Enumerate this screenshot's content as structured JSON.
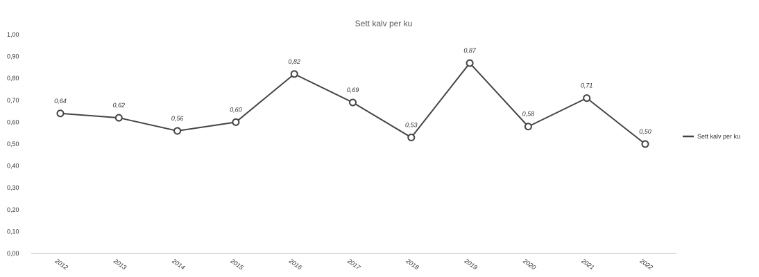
{
  "chart_data": {
    "type": "line",
    "title": "Sett kalv per ku",
    "xlabel": "",
    "ylabel": "",
    "categories": [
      "2012",
      "2013",
      "2014",
      "2015",
      "2016",
      "2017",
      "2018",
      "2019",
      "2020",
      "2021",
      "2022"
    ],
    "series": [
      {
        "name": "Sett kalv per ku",
        "values": [
          0.64,
          0.62,
          0.56,
          0.6,
          0.82,
          0.69,
          0.53,
          0.87,
          0.58,
          0.71,
          0.5
        ],
        "data_labels": [
          "0,64",
          "0,62",
          "0,56",
          "0,60",
          "0,82",
          "0,69",
          "0,53",
          "0,87",
          "0,58",
          "0,71",
          "0,50"
        ]
      }
    ],
    "y_ticks": [
      "0,00",
      "0,10",
      "0,20",
      "0,30",
      "0,40",
      "0,50",
      "0,60",
      "0,70",
      "0,80",
      "0,90",
      "1,00"
    ],
    "ylim": [
      0,
      1.0
    ],
    "grid": false,
    "legend_position": "right",
    "colors": {
      "line": "#444444",
      "marker_fill": "#ffffff",
      "axis": "#bbbbbb"
    }
  }
}
